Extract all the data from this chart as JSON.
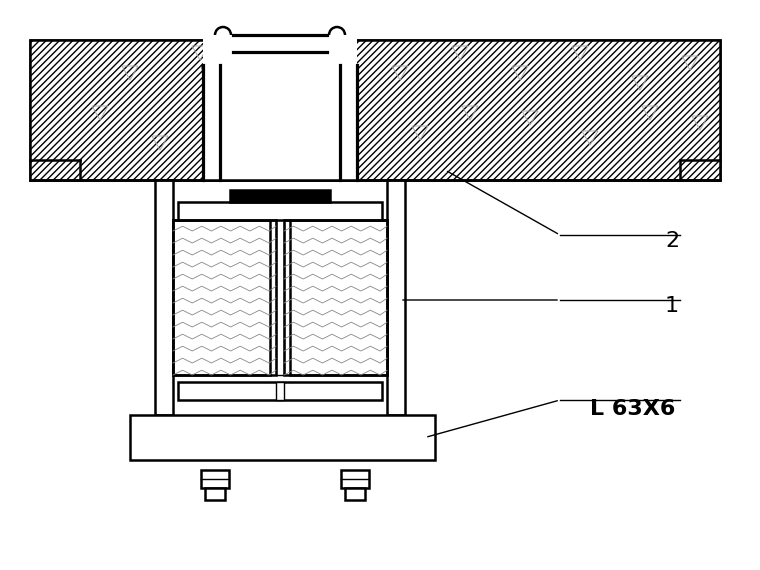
{
  "bg_color": "#ffffff",
  "line_color": "#000000",
  "hatch_color": "#555555",
  "label_L63X6": "L 63X6",
  "label_1": "1",
  "label_2": "2",
  "figsize": [
    7.6,
    5.7
  ],
  "dpi": 100
}
